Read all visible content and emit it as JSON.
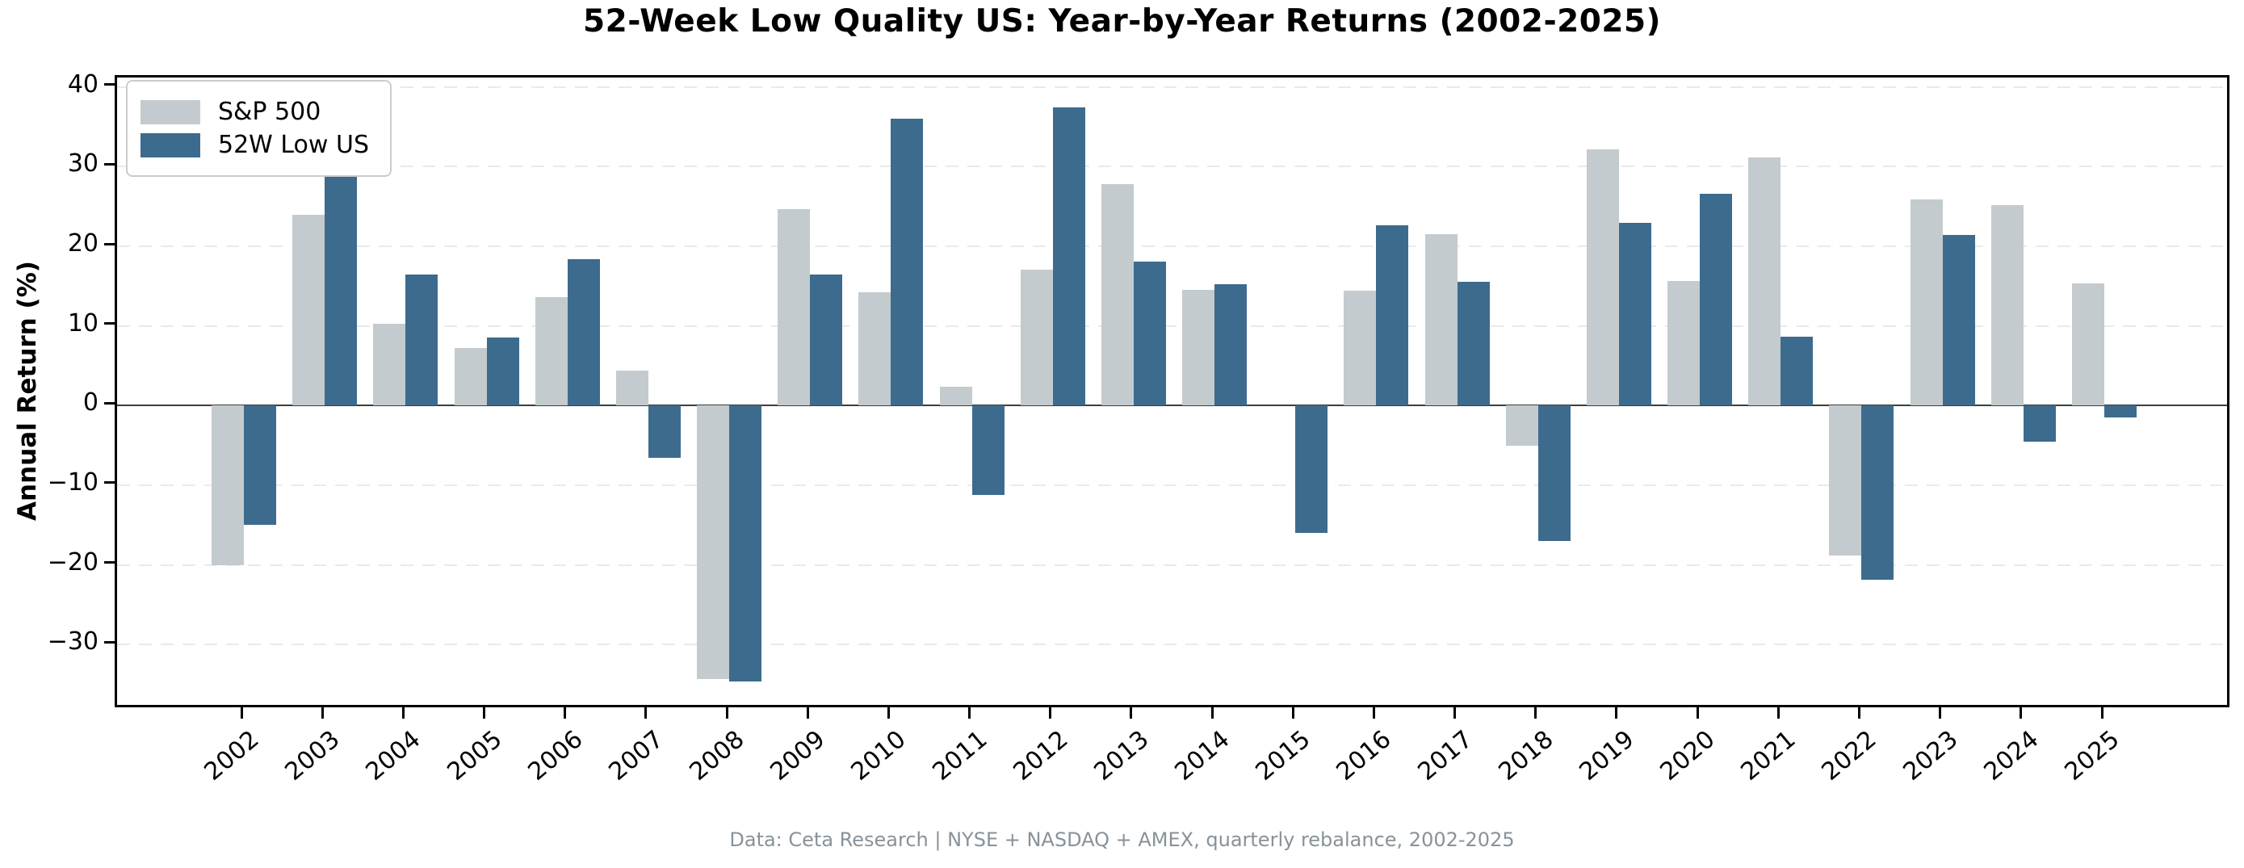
{
  "title": "52-Week Low Quality US: Year-by-Year Returns (2002-2025)",
  "footer": "Data: Ceta Research | NYSE + NASDAQ + AMEX, quarterly rebalance, 2002-2025",
  "colors": {
    "sp500": "#c3cbce",
    "low52w": "#3c6b8e",
    "gridline": "#eaeaea",
    "zero_line": "#3d3d3d",
    "spine": "#000000",
    "tick_text": "#000000",
    "footer_text": "#87929a",
    "legend_border": "#cccccc",
    "background": "#ffffff"
  },
  "chart_data": {
    "type": "bar",
    "title": "52-Week Low Quality US: Year-by-Year Returns (2002-2025)",
    "xlabel": "",
    "ylabel": "Annual Return (%)",
    "categories": [
      "2002",
      "2003",
      "2004",
      "2005",
      "2006",
      "2007",
      "2008",
      "2009",
      "2010",
      "2011",
      "2012",
      "2013",
      "2014",
      "2015",
      "2016",
      "2017",
      "2018",
      "2019",
      "2020",
      "2021",
      "2022",
      "2023",
      "2024",
      "2025"
    ],
    "series": [
      {
        "name": "S&P 500",
        "color": "#c3cbce",
        "values": [
          -20.0,
          24.0,
          10.3,
          7.2,
          13.6,
          4.4,
          -34.3,
          24.7,
          14.2,
          2.4,
          17.1,
          27.8,
          14.5,
          0.0,
          14.4,
          21.5,
          -5.0,
          32.2,
          15.6,
          31.2,
          -18.8,
          25.9,
          25.2,
          15.3
        ]
      },
      {
        "name": "52W Low US",
        "color": "#3c6b8e",
        "values": [
          -15.0,
          37.5,
          16.5,
          8.5,
          18.4,
          -6.6,
          -34.7,
          16.5,
          36.0,
          -11.2,
          37.4,
          18.1,
          15.2,
          -16.0,
          22.6,
          15.5,
          -17.0,
          22.9,
          26.6,
          8.6,
          -21.9,
          21.4,
          -4.5,
          -1.5
        ]
      }
    ],
    "yticks": [
      40,
      30,
      20,
      10,
      0,
      -10,
      -20,
      -30
    ],
    "ylim": [
      -38.2,
      41.2
    ],
    "grid": "horizontal-dashed",
    "legend_position": "upper-left",
    "bar_orientation": "vertical"
  }
}
